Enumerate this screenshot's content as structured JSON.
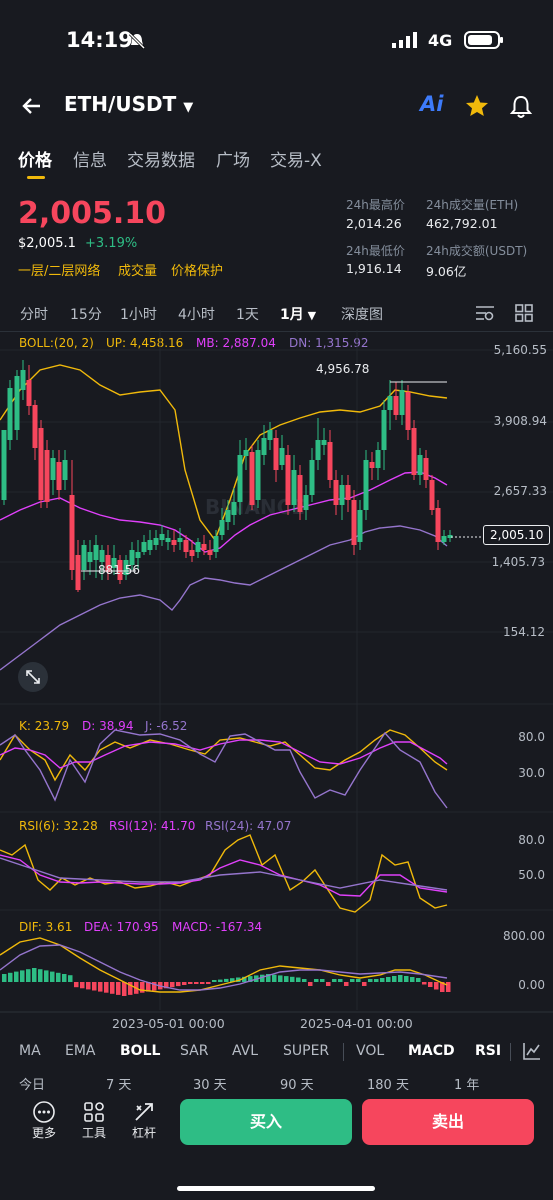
{
  "status": {
    "time": "14:19",
    "network": "4G"
  },
  "header": {
    "pair": "ETH/USDT",
    "ai_label": "Ai"
  },
  "tabs": [
    "价格",
    "信息",
    "交易数据",
    "广场",
    "交易-X"
  ],
  "price": {
    "last": "2,005.10",
    "usd": "$2,005.1",
    "change": "+3.19%",
    "tags": [
      "一层/二层网络",
      "成交量",
      "价格保护"
    ]
  },
  "stats": {
    "high_label": "24h最高价",
    "high": "2,014.26",
    "vol_eth_label": "24h成交量(ETH)",
    "vol_eth": "462,792.01",
    "low_label": "24h最低价",
    "low": "1,916.14",
    "vol_usdt_label": "24h成交额(USDT)",
    "vol_usdt": "9.06亿"
  },
  "timeframes": [
    "分时",
    "15分",
    "1小时",
    "4小时",
    "1天",
    "1月",
    "深度图"
  ],
  "boll": {
    "label": "BOLL:(20, 2)",
    "up": "UP: 4,458.16",
    "mb": "MB: 2,887.04",
    "dn": "DN: 1,315.92"
  },
  "main_axis": [
    "5,160.55",
    "3,908.94",
    "2,657.33",
    "1,405.73",
    "154.12"
  ],
  "annotations": {
    "high": "4,956.78",
    "low": "881.56",
    "current": "2,005.10"
  },
  "kdj": {
    "k": "K: 23.79",
    "d": "D: 38.94",
    "j": "J: -6.52",
    "axis": [
      "80.0",
      "30.0"
    ]
  },
  "rsi": {
    "r6": "RSI(6): 32.28",
    "r12": "RSI(12): 41.70",
    "r24": "RSI(24): 47.07",
    "axis": [
      "80.0",
      "50.0"
    ]
  },
  "macd": {
    "dif": "DIF: 3.61",
    "dea": "DEA: 170.95",
    "macd": "MACD: -167.34",
    "axis": [
      "800.00",
      "0.00"
    ]
  },
  "dates": [
    "2023-05-01 00:00",
    "2025-04-01 00:00"
  ],
  "indicator_tabs": [
    "MA",
    "EMA",
    "BOLL",
    "SAR",
    "AVL",
    "SUPER",
    "VOL",
    "MACD",
    "RSI"
  ],
  "ranges": [
    "今日",
    "7 天",
    "30 天",
    "90 天",
    "180 天",
    "1 年"
  ],
  "tools": [
    "更多",
    "工具",
    "杠杆"
  ],
  "actions": {
    "buy": "买入",
    "sell": "卖出"
  },
  "colors": {
    "up": "#2ebd85",
    "down": "#f6465d",
    "yellow": "#f0b90b",
    "boll_up": "#f0b90b",
    "boll_mb": "#e040fb",
    "boll_dn": "#9575cd"
  },
  "watermark": "BINANCE"
}
